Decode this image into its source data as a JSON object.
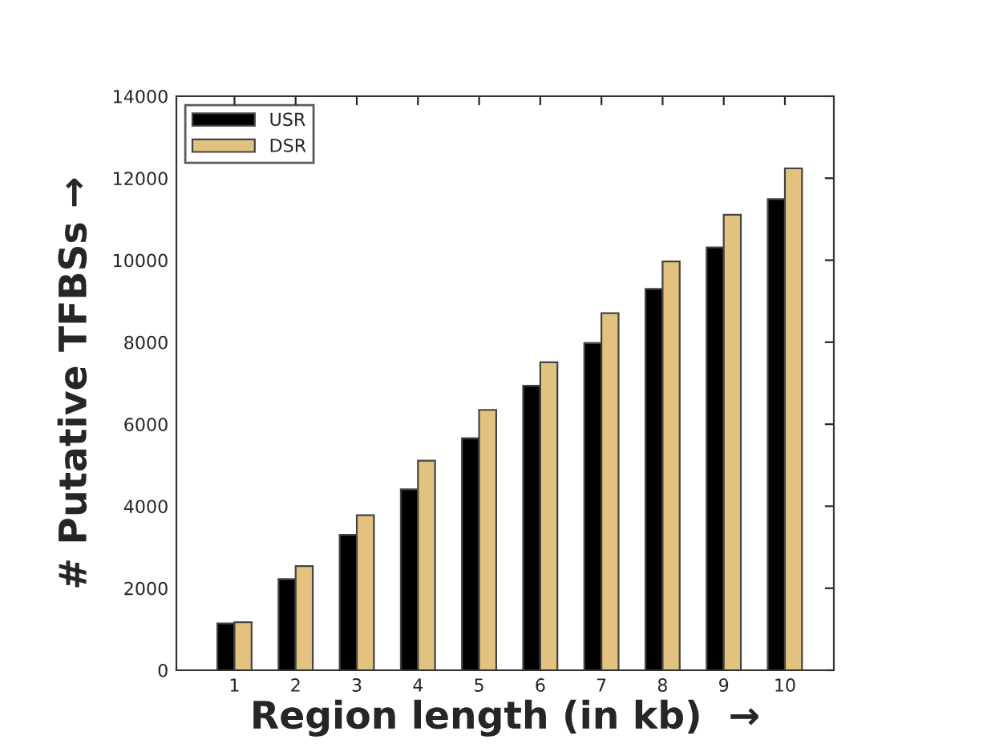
{
  "chart_data": {
    "type": "bar",
    "xlabel": "Region length (in kb)  →",
    "ylabel": "# Putative TFBSs →",
    "categories": [
      "1",
      "2",
      "3",
      "4",
      "5",
      "6",
      "7",
      "8",
      "9",
      "10"
    ],
    "series": [
      {
        "name": "USR",
        "color": "#000000",
        "values": [
          1140,
          2220,
          3300,
          4410,
          5660,
          6940,
          7980,
          9300,
          10310,
          11490
        ]
      },
      {
        "name": "DSR",
        "color": "#e2c27e",
        "values": [
          1170,
          2540,
          3780,
          5110,
          6350,
          7510,
          8710,
          9970,
          11110,
          12240
        ]
      }
    ],
    "ylim": [
      0,
      14000
    ],
    "yticks": [
      0,
      2000,
      4000,
      6000,
      8000,
      10000,
      12000,
      14000
    ],
    "grid": false,
    "legend": "top left"
  }
}
